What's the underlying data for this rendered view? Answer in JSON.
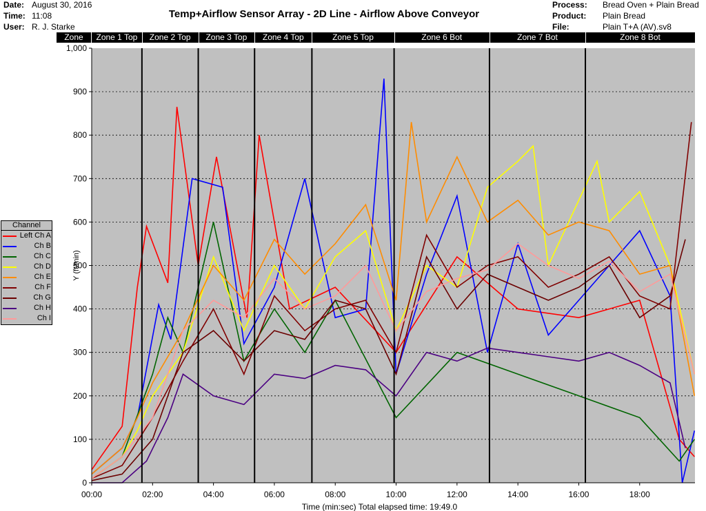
{
  "header": {
    "date_label": "Date:",
    "date_value": "August 30, 2016",
    "time_label": "Time:",
    "time_value": "11:08",
    "user_label": "User:",
    "user_value": "R. J. Starke",
    "process_label": "Process:",
    "process_value": "Bread Oven + Plain Bread",
    "product_label": "Product:",
    "product_value": "Plain Bread",
    "file_label": "File:",
    "file_value": "Plain T+A (AV).sv8"
  },
  "title": "Temp+Airflow Sensor Array - 2D Line - Airflow Above Conveyor",
  "zones": [
    "Zone",
    "Zone 1 Top",
    "Zone 2 Top",
    "Zone 3 Top",
    "Zone 4 Top",
    "Zone 5 Top",
    "Zone 6 Bot",
    "Zone 7 Bot",
    "Zone 8 Bot"
  ],
  "legend": {
    "title": "Channel",
    "items": [
      {
        "label": "Left Ch A",
        "color": "#ff0000"
      },
      {
        "label": "Ch B",
        "color": "#0000ff"
      },
      {
        "label": "Ch C",
        "color": "#006400"
      },
      {
        "label": "Ch D",
        "color": "#ffff00"
      },
      {
        "label": "Ch E",
        "color": "#ff8c00"
      },
      {
        "label": "Ch F",
        "color": "#800000"
      },
      {
        "label": "Ch G",
        "color": "#6b0000"
      },
      {
        "label": "Ch H",
        "color": "#4b0082"
      },
      {
        "label": "Ch I",
        "color": "#ff9a9a"
      }
    ]
  },
  "chart_data": {
    "type": "line",
    "ylabel": "Y (ft/min)",
    "xlabel": "Time (min:sec) Total elapsed time: 19:49.0",
    "ylim": [
      0,
      1000
    ],
    "xlim_seconds": [
      0,
      1189
    ],
    "yticks": [
      "0",
      "100",
      "200",
      "300",
      "400",
      "500",
      "600",
      "700",
      "800",
      "900",
      "1,000"
    ],
    "xticks": [
      "00:00",
      "02:00",
      "04:00",
      "06:00",
      "08:00",
      "10:00",
      "12:00",
      "14:00",
      "16:00",
      "18:00"
    ],
    "zone_boundaries_seconds": [
      99,
      210,
      321,
      434,
      596,
      784,
      973
    ],
    "grid": "horizontal dotted",
    "background": "#c0c0c0",
    "series": [
      {
        "name": "Left Ch A",
        "x_minutes": [
          0,
          1,
          1.5,
          1.8,
          2.5,
          2.8,
          3.5,
          4.1,
          5.1,
          5.5,
          6.5,
          8,
          10,
          12,
          14,
          16,
          18,
          19.3,
          19.8
        ],
        "values": [
          30,
          130,
          450,
          590,
          460,
          865,
          500,
          750,
          380,
          800,
          400,
          450,
          300,
          520,
          400,
          380,
          420,
          100,
          60
        ]
      },
      {
        "name": "Ch B",
        "x_minutes": [
          0,
          1,
          1.5,
          2.2,
          2.6,
          3.3,
          4.3,
          5,
          6,
          7,
          8,
          9,
          9.6,
          10,
          11,
          12,
          13,
          14,
          15,
          16,
          17,
          18,
          19,
          19.4,
          19.8
        ],
        "values": [
          20,
          80,
          150,
          410,
          330,
          700,
          680,
          320,
          450,
          700,
          380,
          400,
          930,
          250,
          480,
          660,
          300,
          550,
          340,
          420,
          500,
          580,
          430,
          0,
          120
        ]
      },
      {
        "name": "Ch C",
        "x_minutes": [
          0,
          1,
          2,
          2.5,
          3,
          4,
          5,
          6,
          7,
          8,
          10,
          12,
          14,
          16,
          18,
          19.3,
          19.8
        ],
        "values": [
          10,
          60,
          250,
          380,
          300,
          600,
          280,
          400,
          300,
          420,
          150,
          300,
          250,
          200,
          150,
          50,
          100
        ]
      },
      {
        "name": "Ch D",
        "x_minutes": [
          0,
          1,
          1.5,
          2,
          3,
          4,
          5,
          6,
          7,
          8,
          9,
          10,
          11,
          12,
          13,
          14,
          14.5,
          15,
          16,
          16.6,
          17,
          18,
          19,
          19.8
        ],
        "values": [
          10,
          60,
          120,
          200,
          300,
          520,
          350,
          500,
          400,
          520,
          580,
          350,
          500,
          450,
          680,
          740,
          775,
          500,
          650,
          740,
          600,
          670,
          500,
          250
        ]
      },
      {
        "name": "Ch E",
        "x_minutes": [
          0,
          1,
          1.5,
          2,
          3,
          4,
          5,
          6,
          7,
          8,
          9,
          10,
          10.5,
          11,
          12,
          13,
          14,
          15,
          16,
          17,
          18,
          19,
          19.8
        ],
        "values": [
          20,
          80,
          150,
          230,
          350,
          500,
          420,
          560,
          480,
          550,
          640,
          420,
          830,
          600,
          750,
          600,
          650,
          570,
          600,
          580,
          480,
          500,
          200
        ]
      },
      {
        "name": "Ch F",
        "x_minutes": [
          0,
          1,
          2,
          3,
          4,
          5,
          6,
          7,
          8,
          9,
          10,
          11,
          12,
          13,
          14,
          15,
          16,
          17,
          18,
          19,
          19.7
        ],
        "values": [
          10,
          40,
          150,
          280,
          400,
          250,
          430,
          350,
          400,
          420,
          300,
          570,
          450,
          500,
          520,
          450,
          480,
          520,
          430,
          400,
          830
        ]
      },
      {
        "name": "Ch G",
        "x_minutes": [
          0,
          1,
          2,
          3,
          4,
          5,
          6,
          7,
          8,
          9,
          10,
          11,
          12,
          13,
          14,
          15,
          16,
          17,
          18,
          19,
          19.5
        ],
        "values": [
          5,
          20,
          100,
          300,
          350,
          280,
          350,
          330,
          420,
          400,
          250,
          520,
          400,
          480,
          450,
          420,
          450,
          500,
          380,
          430,
          560
        ]
      },
      {
        "name": "Ch H",
        "x_minutes": [
          0,
          1,
          1.8,
          2.5,
          3,
          4,
          5,
          6,
          7,
          8,
          9,
          10,
          11,
          12,
          13,
          14,
          15,
          16,
          17,
          18,
          19,
          19.5
        ],
        "values": [
          0,
          0,
          50,
          150,
          250,
          200,
          180,
          250,
          240,
          270,
          260,
          200,
          300,
          280,
          310,
          300,
          290,
          280,
          300,
          270,
          230,
          80
        ]
      },
      {
        "name": "Ch I",
        "x_minutes": [
          0,
          1,
          2,
          3,
          4,
          5,
          6,
          7,
          8,
          9,
          10,
          11,
          12,
          13,
          14,
          15,
          16,
          17,
          18,
          19,
          19.8
        ],
        "values": [
          10,
          60,
          150,
          350,
          420,
          380,
          470,
          400,
          430,
          500,
          350,
          440,
          470,
          490,
          550,
          500,
          470,
          510,
          440,
          480,
          250
        ]
      }
    ]
  }
}
